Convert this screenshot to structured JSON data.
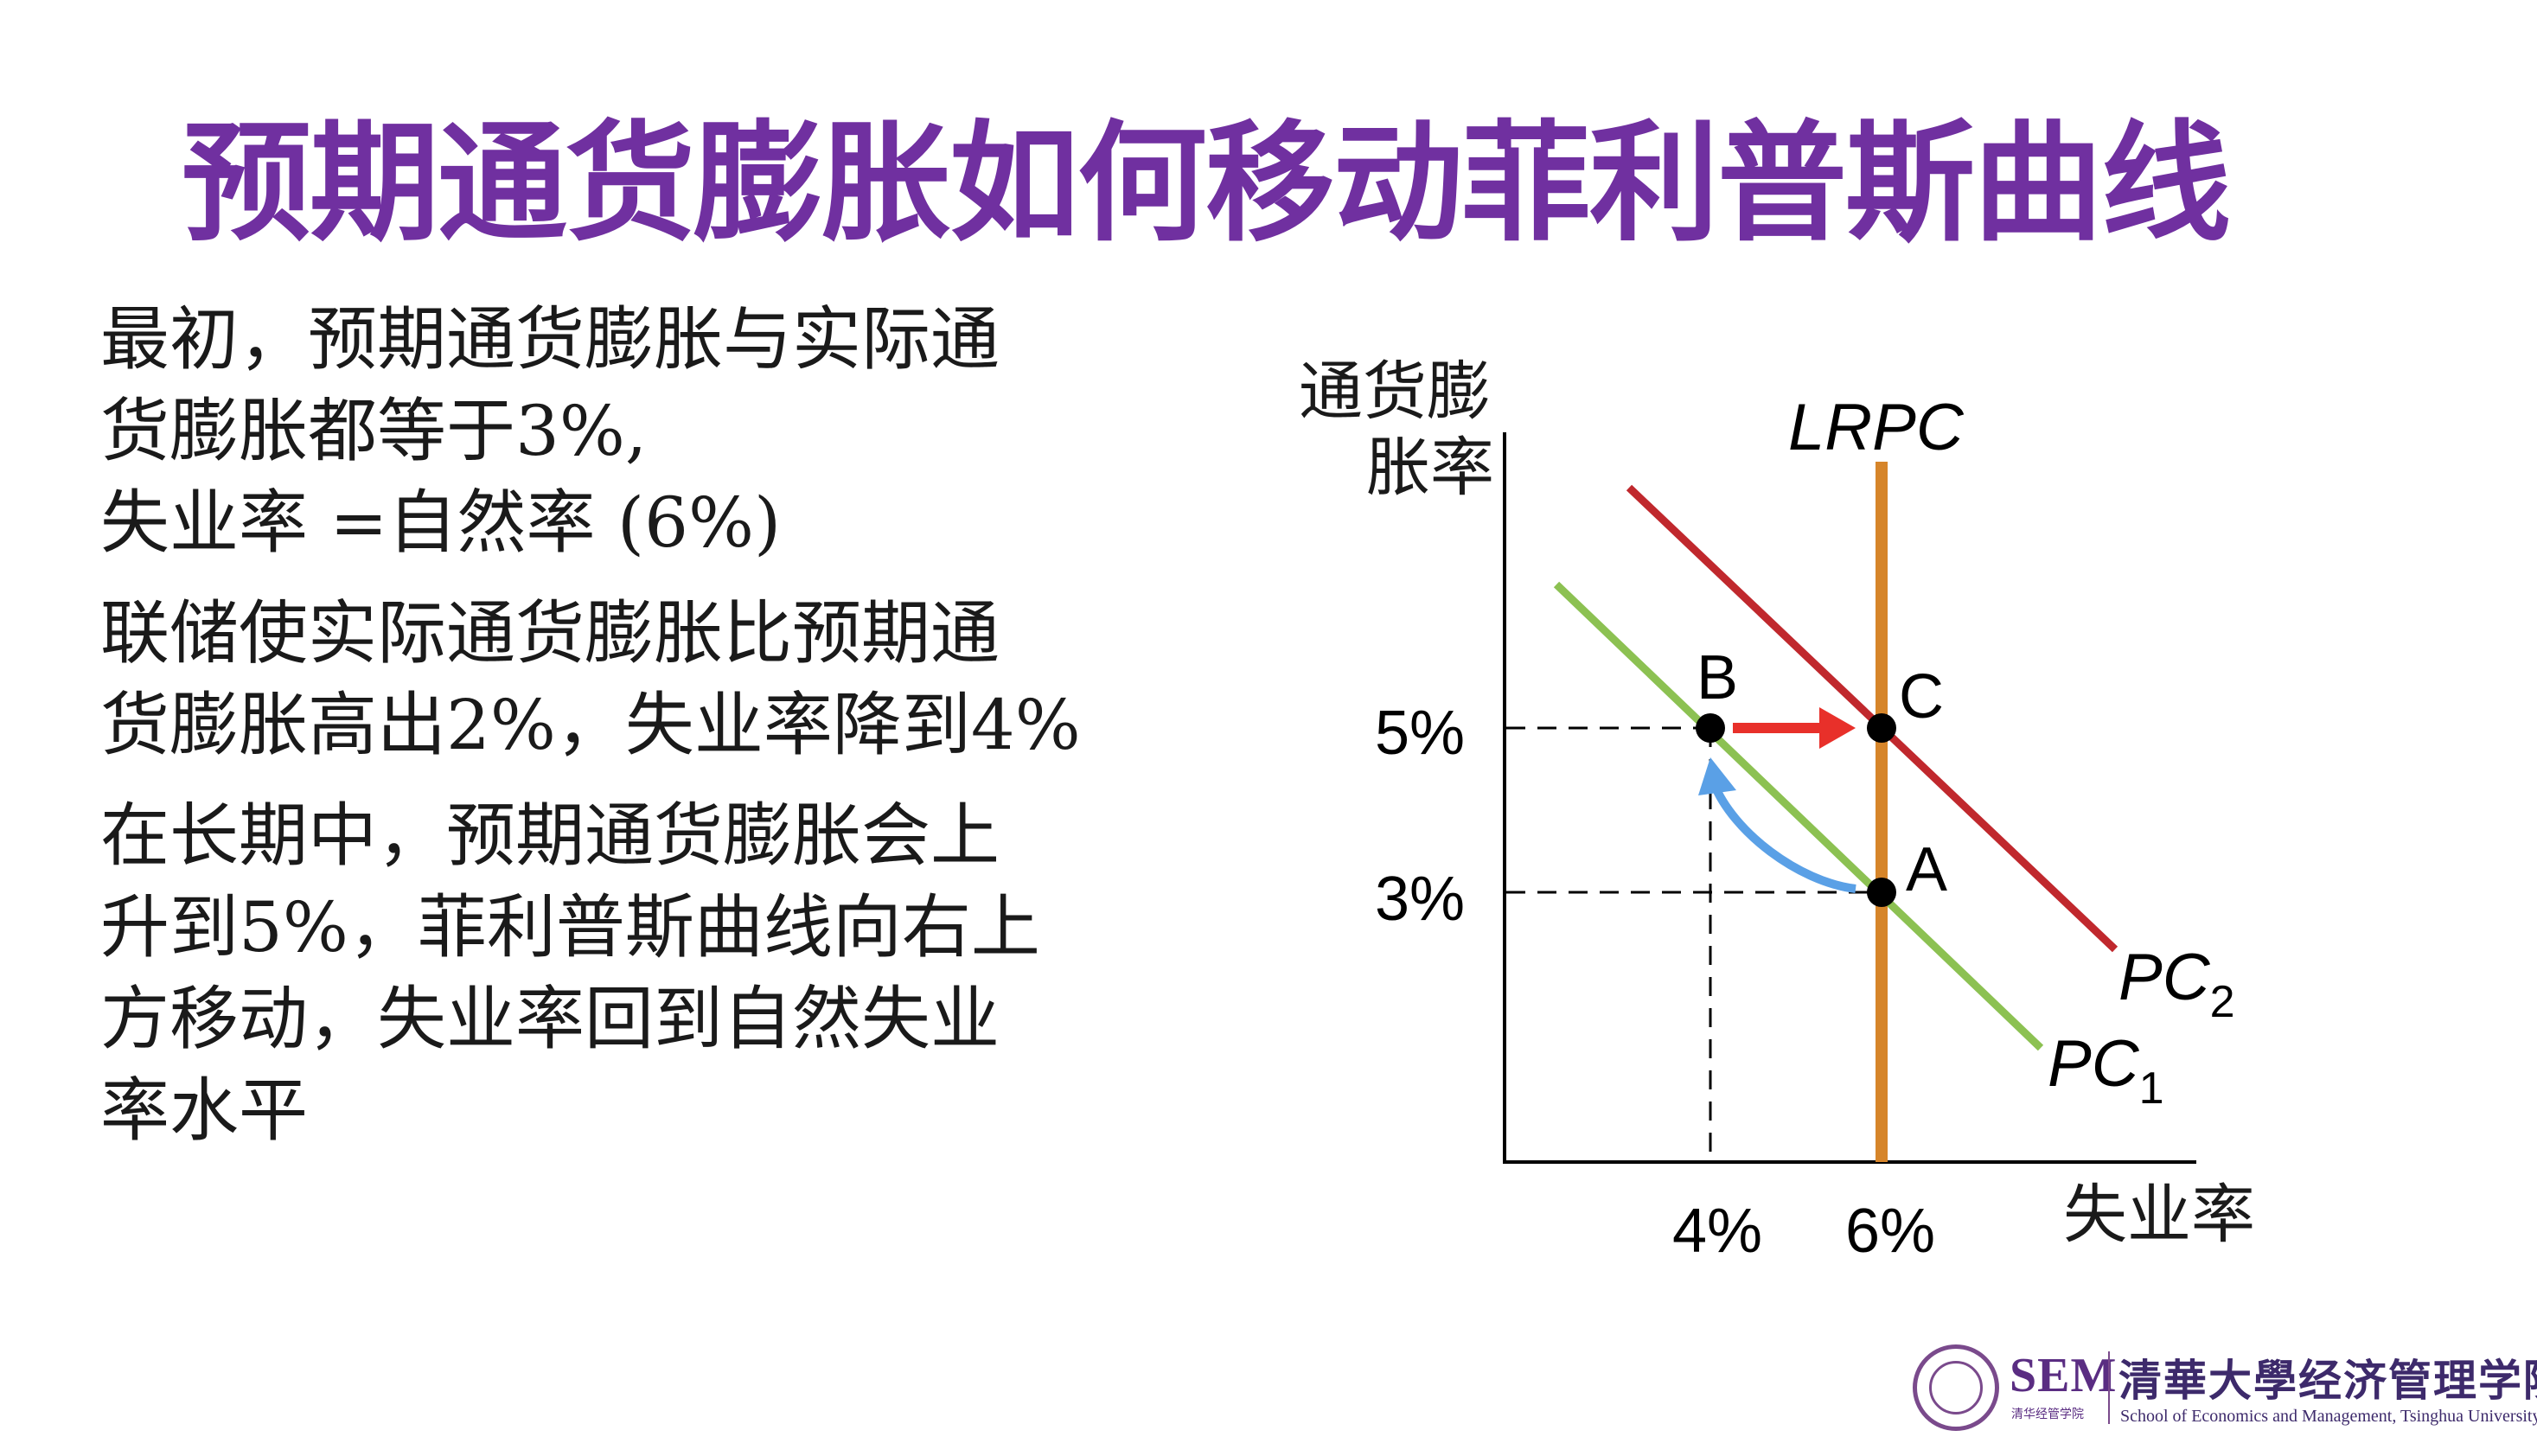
{
  "title": "预期通货膨胀如何移动菲利普斯曲线",
  "paragraphs": [
    {
      "lines": [
        "最初，预期通货膨胀与实际通",
        "货膨胀都等于3%,",
        "失业率 =自然率 (6%)"
      ]
    },
    {
      "lines": [
        "联储使实际通货膨胀比预期通",
        "货膨胀高出2%，失业率降到4%"
      ]
    },
    {
      "lines": [
        "在长期中，预期通货膨胀会上",
        "升到5%，菲利普斯曲线向右上",
        "方移动，失业率回到自然失业",
        "率水平"
      ]
    }
  ],
  "diagram": {
    "y_axis_label_line1": "通货膨",
    "y_axis_label_line2": "胀率",
    "x_axis_label": "失业率",
    "y_ticks": [
      "5%",
      "3%"
    ],
    "x_ticks": [
      "4%",
      "6%"
    ],
    "lrpc_label": "LRPC",
    "pc1_label": "PC",
    "pc1_sub": "1",
    "pc2_label": "PC",
    "pc2_sub": "2",
    "points": {
      "A": "A",
      "B": "B",
      "C": "C"
    },
    "colors": {
      "pc1": "#8cc152",
      "pc2": "#c0282d",
      "lrpc": "#d6852a",
      "arrow_red": "#e8302a",
      "arrow_blue": "#5aa0e6"
    }
  },
  "footer": {
    "sem": "SEM",
    "sem_sub": "清华经管学院",
    "school_cn": "清華大學经济管理学院",
    "school_en": "School of Economics and Management, Tsinghua University"
  }
}
